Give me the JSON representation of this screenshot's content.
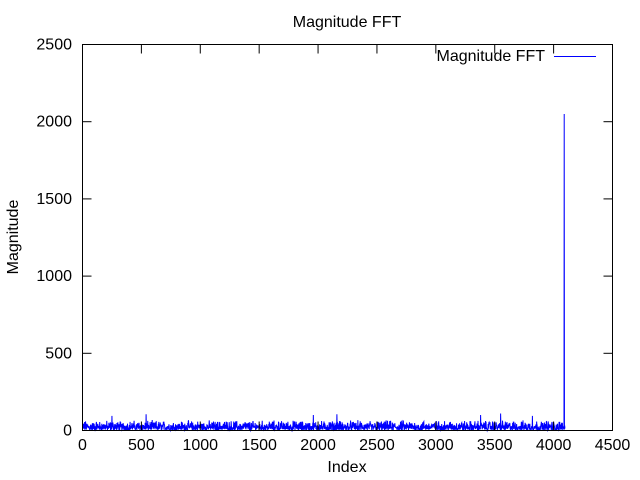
{
  "chart_data": {
    "type": "line",
    "title": "Magnitude FFT",
    "xlabel": "Index",
    "ylabel": "Magnitude",
    "xlim": [
      0,
      4500
    ],
    "ylim": [
      0,
      2500
    ],
    "x_ticks": [
      "0",
      "500",
      "1000",
      "1500",
      "2000",
      "2500",
      "3000",
      "3500",
      "4000",
      "4500"
    ],
    "y_ticks": [
      "0",
      "500",
      "1000",
      "1500",
      "2000",
      "2500"
    ],
    "legend": {
      "placement": "top-right",
      "entries": [
        "Magnitude FFT"
      ]
    },
    "grid": false,
    "series": [
      {
        "name": "Magnitude FFT",
        "color": "#0000ff",
        "x_range": [
          0,
          4096
        ],
        "baseline_level": [
          0,
          70
        ],
        "notable_peaks": [
          {
            "x": 250,
            "y": 95
          },
          {
            "x": 540,
            "y": 105
          },
          {
            "x": 1960,
            "y": 100
          },
          {
            "x": 2160,
            "y": 105
          },
          {
            "x": 3380,
            "y": 100
          },
          {
            "x": 3550,
            "y": 110
          },
          {
            "x": 3820,
            "y": 95
          },
          {
            "x": 4090,
            "y": 2050
          }
        ]
      }
    ]
  }
}
